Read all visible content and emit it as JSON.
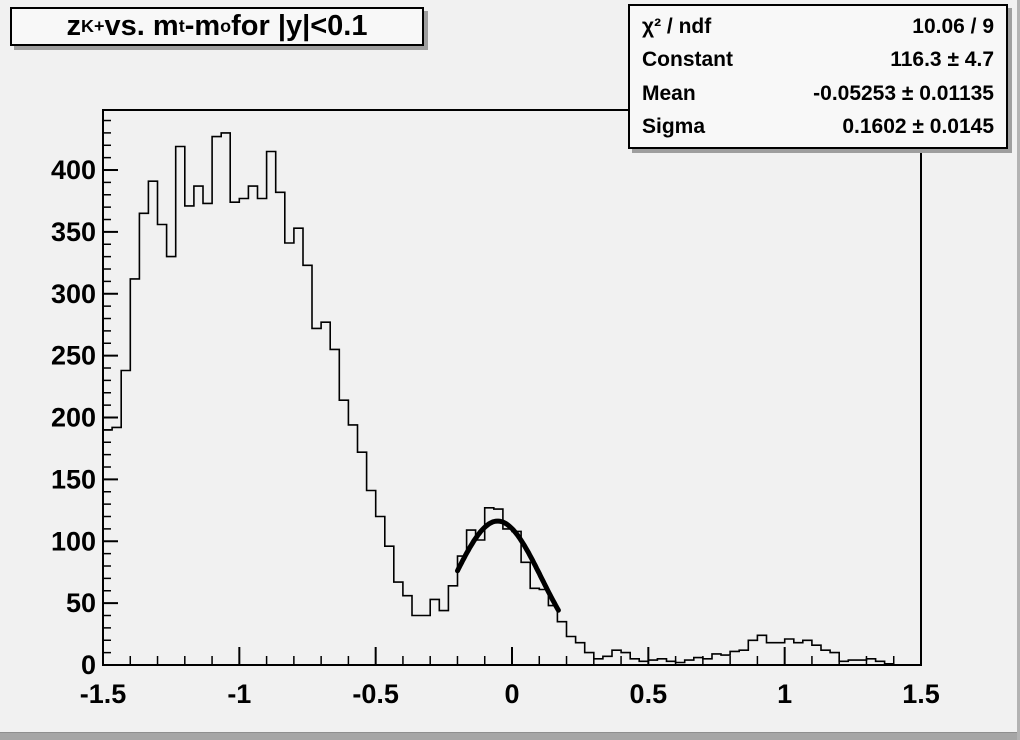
{
  "window": {
    "background_color": "#f1f1f1",
    "edge_color": "#a6a6a6"
  },
  "title": {
    "text": "z_{K+} vs. m_{t}-m_{o} for |y|<0.1",
    "parts": [
      {
        "text": "z"
      },
      {
        "text": "K+",
        "sub": true
      },
      {
        "text": " vs. m"
      },
      {
        "text": "t",
        "sub": true
      },
      {
        "text": "-m"
      },
      {
        "text": "o",
        "sub": true
      },
      {
        "text": " for |y|<0.1"
      }
    ]
  },
  "stats": {
    "rows": [
      {
        "label": "χ² / ndf",
        "value": "10.06 / 9"
      },
      {
        "label": "Constant",
        "value": "116.3 ± 4.7"
      },
      {
        "label": "Mean",
        "value": "-0.05253 ± 0.01135"
      },
      {
        "label": "Sigma",
        "value": "0.1602 ± 0.0145"
      }
    ]
  },
  "chart_data": {
    "type": "bar",
    "subtype": "step-histogram",
    "title": "z_K+ vs. m_t-m_o for |y|<0.1",
    "xlabel": "",
    "ylabel": "",
    "xlim": [
      -1.5,
      1.5
    ],
    "ylim": [
      0,
      448.5
    ],
    "grid": false,
    "line_color": "#000000",
    "fit_color": "#000000",
    "bin_start": -1.5,
    "bin_width": 0.0333333,
    "values": [
      190,
      192,
      238,
      312,
      365,
      391,
      356,
      330,
      419,
      371,
      387,
      373,
      427,
      430,
      374,
      377,
      387,
      377,
      415,
      382,
      341,
      353,
      323,
      272,
      277,
      255,
      214,
      194,
      172,
      141,
      120,
      96,
      67,
      56,
      40,
      40,
      53,
      44,
      64,
      88,
      109,
      101,
      127,
      126,
      110,
      108,
      83,
      62,
      61,
      48,
      35,
      23,
      18,
      10,
      5,
      7,
      12,
      10,
      5,
      3,
      4,
      5,
      3,
      2,
      4,
      6,
      5,
      9,
      8,
      11,
      12,
      20,
      24,
      18,
      18,
      21,
      18,
      20,
      16,
      12,
      10,
      3,
      4,
      4,
      5,
      3,
      1,
      0,
      0,
      0
    ],
    "x_major_ticks": [
      -1.5,
      -1,
      -0.5,
      0,
      0.5,
      1,
      1.5
    ],
    "x_tick_labels": [
      "-1.5",
      "-1",
      "-0.5",
      "0",
      "0.5",
      "1",
      "1.5"
    ],
    "x_minor_step": 0.1,
    "y_major_ticks": [
      0,
      50,
      100,
      150,
      200,
      250,
      300,
      350,
      400
    ],
    "y_tick_labels": [
      "0",
      "50",
      "100",
      "150",
      "200",
      "250",
      "300",
      "350",
      "400"
    ],
    "y_minor_step": 10,
    "fit": {
      "type": "gaussian",
      "constant": 116.3,
      "mean": -0.05253,
      "sigma": 0.1602,
      "range": [
        -0.2,
        0.17
      ]
    }
  }
}
